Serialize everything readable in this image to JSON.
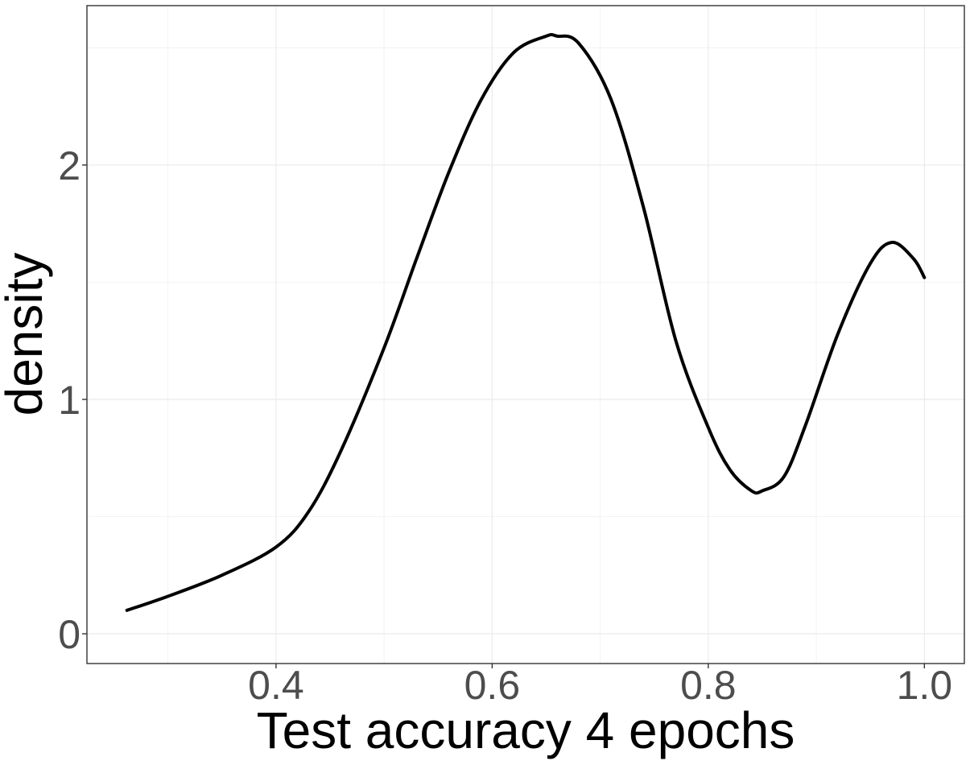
{
  "chart_data": {
    "type": "line",
    "title": "",
    "xlabel": "Test accuracy 4 epochs",
    "ylabel": "density",
    "xlim": [
      0.225,
      1.037
    ],
    "ylim": [
      -0.127,
      2.68
    ],
    "x_ticks": [
      0.4,
      0.6,
      0.8,
      1.0
    ],
    "x_tick_labels": [
      "0.4",
      "0.6",
      "0.8",
      "1.0"
    ],
    "y_ticks": [
      0,
      1,
      2
    ],
    "y_tick_labels": [
      "0",
      "1",
      "2"
    ],
    "x_minor_ticks": [
      0.3,
      0.5,
      0.7,
      0.9
    ],
    "y_minor_ticks": [
      0.5,
      1.5,
      2.5
    ],
    "grid": true,
    "line_color": "#000000",
    "series": [
      {
        "x": [
          0.262,
          0.3,
          0.35,
          0.4,
          0.43,
          0.46,
          0.5,
          0.53,
          0.56,
          0.59,
          0.62,
          0.65,
          0.66,
          0.68,
          0.71,
          0.74,
          0.77,
          0.8,
          0.82,
          0.84,
          0.85,
          0.87,
          0.89,
          0.92,
          0.95,
          0.97,
          0.99,
          1.0
        ],
        "y": [
          0.1,
          0.16,
          0.25,
          0.37,
          0.52,
          0.78,
          1.22,
          1.6,
          1.97,
          2.28,
          2.48,
          2.55,
          2.55,
          2.52,
          2.28,
          1.82,
          1.25,
          0.88,
          0.7,
          0.61,
          0.61,
          0.67,
          0.89,
          1.28,
          1.58,
          1.67,
          1.6,
          1.52
        ]
      }
    ]
  }
}
